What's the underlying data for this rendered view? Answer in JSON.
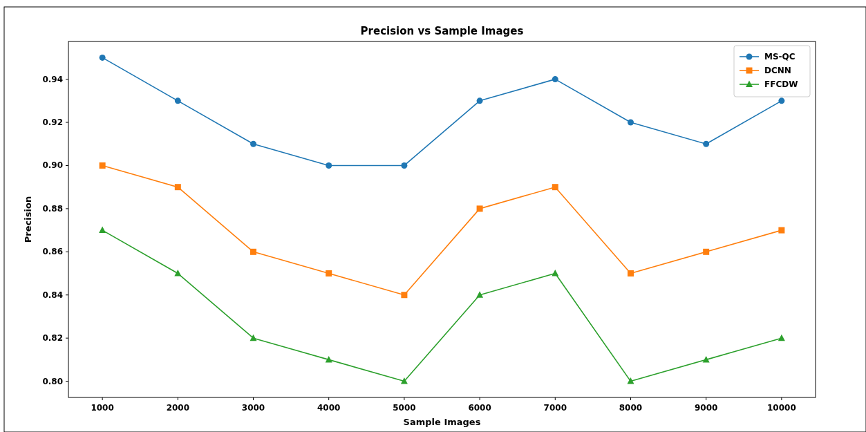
{
  "chart_data": {
    "type": "line",
    "title": "Precision vs Sample Images",
    "xlabel": "Sample Images",
    "ylabel": "Precision",
    "x": [
      1000,
      2000,
      3000,
      4000,
      5000,
      6000,
      7000,
      8000,
      9000,
      10000
    ],
    "series": [
      {
        "name": "MS-QC",
        "color": "#1f77b4",
        "marker": "circle",
        "values": [
          0.95,
          0.93,
          0.91,
          0.9,
          0.9,
          0.93,
          0.94,
          0.92,
          0.91,
          0.93
        ]
      },
      {
        "name": "DCNN",
        "color": "#ff7f0e",
        "marker": "square",
        "values": [
          0.9,
          0.89,
          0.86,
          0.85,
          0.84,
          0.88,
          0.89,
          0.85,
          0.86,
          0.87
        ]
      },
      {
        "name": "FFCDW",
        "color": "#2ca02c",
        "marker": "triangle",
        "values": [
          0.87,
          0.85,
          0.82,
          0.81,
          0.8,
          0.84,
          0.85,
          0.8,
          0.81,
          0.82
        ]
      }
    ],
    "xlim": [
      550,
      10450
    ],
    "xticks": [
      1000,
      2000,
      3000,
      4000,
      5000,
      6000,
      7000,
      8000,
      9000,
      10000
    ],
    "ylim": [
      0.7925,
      0.9575
    ],
    "yticks": [
      {
        "value": 0.8,
        "label": "0.80"
      },
      {
        "value": 0.82,
        "label": "0.82"
      },
      {
        "value": 0.84,
        "label": "0.84"
      },
      {
        "value": 0.86,
        "label": "0.86"
      },
      {
        "value": 0.88,
        "label": "0.88"
      },
      {
        "value": 0.9,
        "label": "0.90"
      },
      {
        "value": 0.92,
        "label": "0.92"
      },
      {
        "value": 0.94,
        "label": "0.94"
      }
    ],
    "grid": false,
    "legend": "top right",
    "line_style": "solid"
  }
}
